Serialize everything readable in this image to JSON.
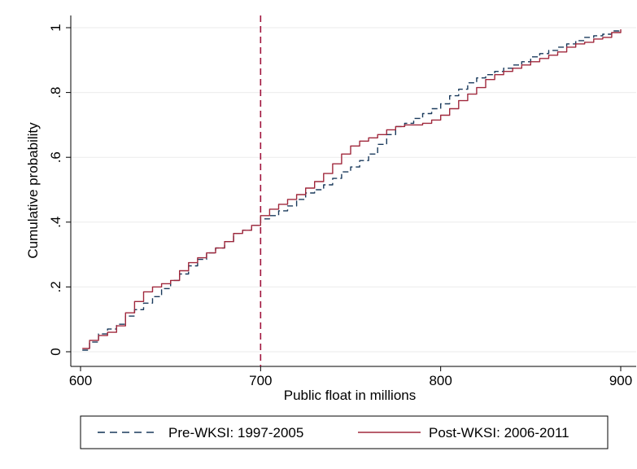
{
  "chart_data": {
    "type": "line",
    "title": "",
    "xlabel": "Public float in millions",
    "ylabel": "Cumulative probability",
    "xlim": [
      600,
      900
    ],
    "ylim": [
      0,
      1
    ],
    "x_ticks": [
      600,
      700,
      800,
      900
    ],
    "x_tick_labels": [
      "600",
      "700",
      "800",
      "900"
    ],
    "y_ticks": [
      0,
      0.2,
      0.4,
      0.6,
      0.8,
      1
    ],
    "y_tick_labels": [
      "0",
      ".2",
      ".4",
      ".6",
      ".8",
      "1"
    ],
    "grid": true,
    "legend_position": "bottom",
    "reference_line": {
      "x": 700,
      "color": "#a0143c",
      "style": "dashed"
    },
    "series": [
      {
        "name": "Pre-WKSI: 1997-2005",
        "color": "#1a3a5c",
        "style": "dashed",
        "x": [
          601,
          605,
          610,
          615,
          620,
          625,
          630,
          635,
          640,
          645,
          650,
          655,
          660,
          665,
          670,
          675,
          680,
          685,
          690,
          695,
          700,
          705,
          710,
          715,
          720,
          725,
          730,
          735,
          740,
          745,
          750,
          755,
          760,
          765,
          770,
          775,
          780,
          785,
          790,
          795,
          800,
          805,
          810,
          815,
          820,
          825,
          830,
          835,
          840,
          845,
          850,
          855,
          860,
          865,
          870,
          875,
          880,
          885,
          890,
          895,
          899
        ],
        "y": [
          0.005,
          0.03,
          0.055,
          0.07,
          0.085,
          0.11,
          0.13,
          0.15,
          0.17,
          0.195,
          0.22,
          0.24,
          0.265,
          0.285,
          0.305,
          0.32,
          0.34,
          0.365,
          0.375,
          0.39,
          0.41,
          0.42,
          0.435,
          0.45,
          0.47,
          0.49,
          0.5,
          0.515,
          0.535,
          0.555,
          0.57,
          0.59,
          0.61,
          0.64,
          0.67,
          0.695,
          0.705,
          0.72,
          0.735,
          0.75,
          0.765,
          0.79,
          0.81,
          0.83,
          0.845,
          0.855,
          0.865,
          0.875,
          0.885,
          0.895,
          0.91,
          0.92,
          0.93,
          0.94,
          0.95,
          0.96,
          0.97,
          0.975,
          0.98,
          0.99,
          1.0
        ]
      },
      {
        "name": "Post-WKSI: 2006-2011",
        "color": "#a0283c",
        "style": "solid",
        "x": [
          601,
          605,
          610,
          615,
          620,
          625,
          630,
          635,
          640,
          645,
          650,
          655,
          660,
          665,
          670,
          675,
          680,
          685,
          690,
          695,
          700,
          705,
          710,
          715,
          720,
          725,
          730,
          735,
          740,
          745,
          750,
          755,
          760,
          765,
          770,
          775,
          780,
          785,
          790,
          795,
          800,
          805,
          810,
          815,
          820,
          825,
          830,
          835,
          840,
          845,
          850,
          855,
          860,
          865,
          870,
          875,
          880,
          885,
          890,
          895,
          900
        ],
        "y": [
          0.01,
          0.035,
          0.05,
          0.06,
          0.08,
          0.12,
          0.155,
          0.185,
          0.2,
          0.21,
          0.22,
          0.25,
          0.275,
          0.29,
          0.305,
          0.32,
          0.34,
          0.365,
          0.375,
          0.39,
          0.42,
          0.44,
          0.455,
          0.47,
          0.485,
          0.505,
          0.525,
          0.55,
          0.58,
          0.61,
          0.635,
          0.65,
          0.66,
          0.67,
          0.685,
          0.695,
          0.7,
          0.7,
          0.705,
          0.715,
          0.73,
          0.75,
          0.775,
          0.795,
          0.815,
          0.84,
          0.855,
          0.865,
          0.875,
          0.885,
          0.895,
          0.905,
          0.915,
          0.925,
          0.94,
          0.95,
          0.955,
          0.965,
          0.97,
          0.985,
          0.995
        ]
      }
    ]
  }
}
